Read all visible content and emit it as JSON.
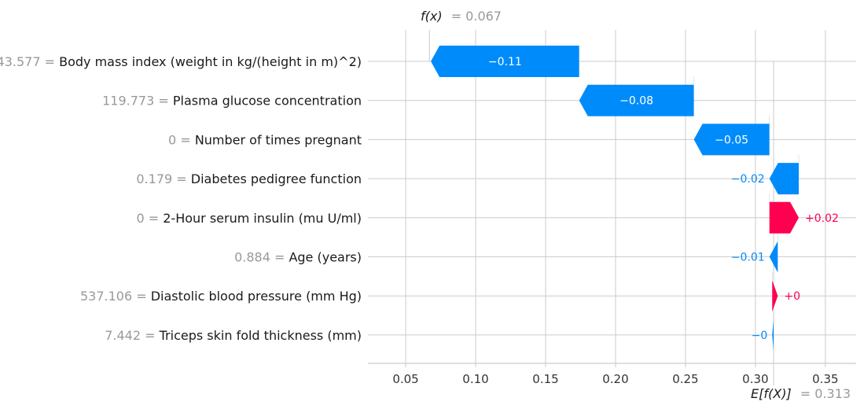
{
  "chart_data": {
    "type": "waterfall",
    "fx_label": "f(x)",
    "fx_value": "= 0.067",
    "ex_label": "E[f(X)]",
    "ex_value": "= 0.313",
    "base_value": 0.313,
    "output_value": 0.067,
    "xlim": [
      0.023,
      0.372
    ],
    "xticks": [
      0.05,
      0.1,
      0.15,
      0.2,
      0.25,
      0.3,
      0.35
    ],
    "xtick_labels": [
      "0.05",
      "0.10",
      "0.15",
      "0.20",
      "0.25",
      "0.30",
      "0.35"
    ],
    "grid": true,
    "features": [
      {
        "value_text": "43.577 =",
        "name": "Body mass index (weight in kg/(height in m)^2)",
        "contribution": -0.106,
        "label": "−0.11",
        "label_inside": true
      },
      {
        "value_text": "119.773 =",
        "name": "Plasma glucose concentration",
        "contribution": -0.082,
        "label": "−0.08",
        "label_inside": true
      },
      {
        "value_text": "0 =",
        "name": "Number of times pregnant",
        "contribution": -0.054,
        "label": "−0.05",
        "label_inside": true
      },
      {
        "value_text": "0.179 =",
        "name": "Diabetes pedigree function",
        "contribution": -0.021,
        "label": "−0.02",
        "label_inside": false
      },
      {
        "value_text": "0 =",
        "name": "2-Hour serum insulin (mu U/ml)",
        "contribution": 0.021,
        "label": "+0.02",
        "label_inside": false
      },
      {
        "value_text": "0.884 =",
        "name": "Age (years)",
        "contribution": -0.006,
        "label": "−0.01",
        "label_inside": false
      },
      {
        "value_text": "537.106 =",
        "name": "Diastolic blood pressure (mm Hg)",
        "contribution": 0.004,
        "label": "+0",
        "label_inside": false
      },
      {
        "value_text": "7.442 =",
        "name": "Triceps skin fold thickness (mm)",
        "contribution": -0.001,
        "label": "−0",
        "label_inside": false
      }
    ],
    "colors": {
      "negative": "#008bfb",
      "positive": "#ff0051",
      "feature_value": "#999999",
      "feature_name": "#1a1a1a",
      "grid": "#cccccc",
      "axis": "#cccccc",
      "tick_text": "#333333",
      "inside_label": "#ffffff"
    }
  }
}
